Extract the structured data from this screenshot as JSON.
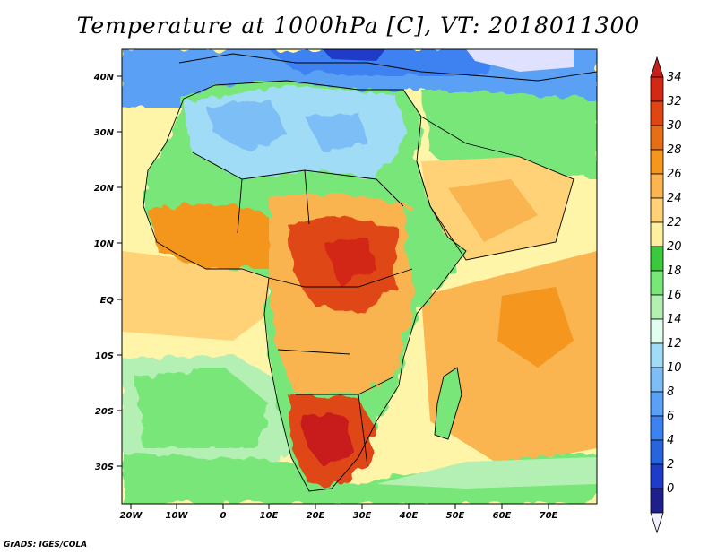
{
  "title": "Temperature at 1000hPa [C], VT: 2018011300",
  "credit": "GrADS: IGES/COLA",
  "lat_labels": [
    "40N",
    "30N",
    "20N",
    "10N",
    "EQ",
    "10S",
    "20S",
    "30S"
  ],
  "lon_labels": [
    "20W",
    "10W",
    "0",
    "10E",
    "20E",
    "30E",
    "40E",
    "50E",
    "60E",
    "70E"
  ],
  "colorbar": {
    "labels": [
      "34",
      "32",
      "30",
      "28",
      "26",
      "24",
      "22",
      "20",
      "18",
      "16",
      "14",
      "12",
      "10",
      "8",
      "6",
      "4",
      "2",
      "0"
    ],
    "colors": [
      "#f0f0ff",
      "#1e1e8c",
      "#1e3cc8",
      "#2864dc",
      "#3c82f0",
      "#5aa0f5",
      "#7cbef5",
      "#a0dcf5",
      "#e0fff0",
      "#b4f0b4",
      "#78e678",
      "#3cc83c",
      "#fff0a0",
      "#ffd278",
      "#fab450",
      "#f5961e",
      "#e66e14",
      "#e04614",
      "#d22814",
      "#c81e1e"
    ]
  },
  "map": {
    "ocean_color": "#fff5a8",
    "region_colors": {
      "europe_north": "#5aa0f5",
      "sahara": "#a0dcf5",
      "sahel": "#78e678",
      "west_africa": "#f5961e",
      "central_africa": "#e04614",
      "southern_africa": "#fab450",
      "kalahari": "#d22814",
      "south_atlantic": "#b4f0b4",
      "southern_ocean": "#78e678",
      "indian_ocean": "#fab450",
      "arabia": "#ffd278",
      "gulf_guinea": "#ffd278"
    }
  }
}
